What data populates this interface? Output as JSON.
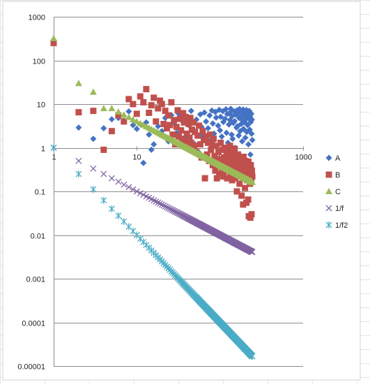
{
  "chart_data": {
    "type": "scatter",
    "title": "",
    "xlabel": "",
    "ylabel": "",
    "x_scale": "log",
    "y_scale": "log",
    "xlim": [
      1,
      1000
    ],
    "ylim": [
      1e-05,
      1000
    ],
    "x_ticks": [
      "1",
      "10",
      "100",
      "1000"
    ],
    "y_ticks": [
      "0.00001",
      "0.0001",
      "0.001",
      "0.01",
      "0.1",
      "1",
      "10",
      "100",
      "1000"
    ],
    "grid": true,
    "legend_position": "right",
    "background_sheet_gridlines": true,
    "series": [
      {
        "name": "A",
        "color": "#4472c4",
        "marker": "diamond",
        "points": [
          [
            2,
            2.9
          ],
          [
            3,
            1.6
          ],
          [
            4,
            2.8
          ],
          [
            5,
            4.5
          ],
          [
            6,
            4.8
          ],
          [
            7,
            4.2
          ],
          [
            8,
            6.8
          ],
          [
            9,
            3.3
          ],
          [
            10,
            2.7
          ],
          [
            11,
            3.5
          ],
          [
            12,
            0.45
          ],
          [
            13,
            3.8
          ],
          [
            14,
            2.0
          ],
          [
            15,
            0.9
          ],
          [
            16,
            1.2
          ],
          [
            18,
            3.1
          ],
          [
            20,
            2.4
          ],
          [
            22,
            4.8
          ],
          [
            24,
            1.4
          ],
          [
            26,
            5.6
          ],
          [
            28,
            3.7
          ],
          [
            30,
            2.2
          ],
          [
            32,
            6.0
          ],
          [
            35,
            4.1
          ],
          [
            38,
            1.7
          ],
          [
            40,
            5.2
          ],
          [
            42,
            3.3
          ],
          [
            45,
            7.0
          ],
          [
            48,
            2.6
          ],
          [
            50,
            1.2
          ],
          [
            52,
            4.4
          ],
          [
            55,
            0.8
          ],
          [
            58,
            5.8
          ],
          [
            60,
            3.0
          ],
          [
            62,
            1.9
          ],
          [
            65,
            6.4
          ],
          [
            68,
            4.0
          ],
          [
            70,
            0.7
          ],
          [
            72,
            2.8
          ],
          [
            75,
            5.5
          ],
          [
            78,
            1.5
          ],
          [
            80,
            7.1
          ],
          [
            82,
            3.6
          ],
          [
            85,
            2.1
          ],
          [
            88,
            6.6
          ],
          [
            90,
            4.9
          ],
          [
            92,
            1.1
          ],
          [
            95,
            3.2
          ],
          [
            98,
            7.4
          ],
          [
            100,
            2.5
          ],
          [
            102,
            5.1
          ],
          [
            105,
            1.8
          ],
          [
            108,
            6.9
          ],
          [
            110,
            3.9
          ],
          [
            112,
            0.9
          ],
          [
            115,
            4.6
          ],
          [
            118,
            7.6
          ],
          [
            120,
            2.2
          ],
          [
            122,
            5.9
          ],
          [
            125,
            1.3
          ],
          [
            128,
            3.4
          ],
          [
            130,
            6.2
          ],
          [
            132,
            4.3
          ],
          [
            135,
            7.8
          ],
          [
            138,
            2.0
          ],
          [
            140,
            5.3
          ],
          [
            142,
            1.6
          ],
          [
            145,
            3.7
          ],
          [
            148,
            6.8
          ],
          [
            150,
            4.1
          ],
          [
            152,
            1.0
          ],
          [
            155,
            5.7
          ],
          [
            158,
            2.9
          ],
          [
            160,
            7.2
          ],
          [
            162,
            3.1
          ],
          [
            165,
            6.1
          ],
          [
            168,
            1.9
          ],
          [
            170,
            4.8
          ],
          [
            172,
            7.7
          ],
          [
            175,
            2.4
          ],
          [
            178,
            5.0
          ],
          [
            180,
            3.5
          ],
          [
            182,
            6.5
          ],
          [
            185,
            1.4
          ],
          [
            188,
            4.2
          ],
          [
            190,
            7.5
          ],
          [
            192,
            2.7
          ],
          [
            195,
            5.6
          ],
          [
            198,
            3.8
          ],
          [
            200,
            6.7
          ],
          [
            202,
            1.7
          ],
          [
            205,
            4.5
          ],
          [
            208,
            7.3
          ],
          [
            210,
            2.3
          ],
          [
            212,
            5.4
          ],
          [
            215,
            3.3
          ],
          [
            218,
            6.3
          ],
          [
            220,
            1.2
          ],
          [
            222,
            4.7
          ],
          [
            225,
            7.0
          ],
          [
            228,
            2.6
          ],
          [
            230,
            5.2
          ],
          [
            232,
            0.7
          ],
          [
            235,
            3.9
          ],
          [
            238,
            6.0
          ],
          [
            240,
            2.1
          ],
          [
            242,
            4.4
          ],
          [
            245,
            1.5
          ]
        ]
      },
      {
        "name": "B",
        "color": "#c0504d",
        "marker": "square",
        "points": [
          [
            1,
            250
          ],
          [
            2,
            6.5
          ],
          [
            3,
            7.0
          ],
          [
            4,
            0.9
          ],
          [
            5,
            2.4
          ],
          [
            6,
            5.5
          ],
          [
            7,
            4.0
          ],
          [
            8,
            13
          ],
          [
            9,
            10
          ],
          [
            10,
            6.0
          ],
          [
            11,
            15
          ],
          [
            12,
            11
          ],
          [
            13,
            22
          ],
          [
            14,
            6.3
          ],
          [
            15,
            9.4
          ],
          [
            16,
            14
          ],
          [
            17,
            4.0
          ],
          [
            18,
            8.0
          ],
          [
            19,
            12
          ],
          [
            20,
            10
          ],
          [
            21,
            3.5
          ],
          [
            22,
            7.0
          ],
          [
            23,
            2.8
          ],
          [
            24,
            5.5
          ],
          [
            25,
            3.3
          ],
          [
            26,
            11
          ],
          [
            27,
            2.0
          ],
          [
            28,
            4.3
          ],
          [
            29,
            1.2
          ],
          [
            30,
            3.0
          ],
          [
            31,
            7.2
          ],
          [
            32,
            1.8
          ],
          [
            33,
            4.6
          ],
          [
            34,
            2.5
          ],
          [
            35,
            1.6
          ],
          [
            36,
            6.2
          ],
          [
            37,
            3.8
          ],
          [
            38,
            1.4
          ],
          [
            39,
            5.0
          ],
          [
            40,
            2.1
          ],
          [
            41,
            1.0
          ],
          [
            42,
            3.5
          ],
          [
            43,
            1.7
          ],
          [
            44,
            4.8
          ],
          [
            45,
            1.3
          ],
          [
            46,
            2.6
          ],
          [
            47,
            0.9
          ],
          [
            48,
            3.8
          ],
          [
            49,
            1.1
          ],
          [
            50,
            2.3
          ],
          [
            52,
            0.8
          ],
          [
            54,
            1.9
          ],
          [
            56,
            3.2
          ],
          [
            58,
            1.2
          ],
          [
            60,
            0.6
          ],
          [
            62,
            2.4
          ],
          [
            64,
            1.5
          ],
          [
            66,
            0.2
          ],
          [
            68,
            1.8
          ],
          [
            70,
            0.7
          ],
          [
            72,
            1.3
          ],
          [
            74,
            0.5
          ],
          [
            76,
            2.0
          ],
          [
            78,
            0.9
          ],
          [
            80,
            1.2
          ],
          [
            82,
            0.4
          ],
          [
            84,
            1.6
          ],
          [
            86,
            0.65
          ],
          [
            88,
            0.3
          ],
          [
            90,
            1.1
          ],
          [
            92,
            0.2
          ],
          [
            94,
            0.55
          ],
          [
            96,
            0.8
          ],
          [
            98,
            0.25
          ],
          [
            100,
            0.5
          ],
          [
            102,
            1.3
          ],
          [
            104,
            0.4
          ],
          [
            106,
            0.35
          ],
          [
            108,
            0.9
          ],
          [
            110,
            0.22
          ],
          [
            112,
            0.6
          ],
          [
            114,
            1.0
          ],
          [
            116,
            0.3
          ],
          [
            118,
            0.45
          ],
          [
            120,
            0.75
          ],
          [
            122,
            0.2
          ],
          [
            124,
            0.55
          ],
          [
            126,
            0.85
          ],
          [
            128,
            0.3
          ],
          [
            130,
            0.4
          ],
          [
            132,
            1.1
          ],
          [
            134,
            0.25
          ],
          [
            136,
            0.65
          ],
          [
            138,
            0.5
          ],
          [
            140,
            0.18
          ],
          [
            142,
            0.35
          ],
          [
            144,
            0.75
          ],
          [
            146,
            0.28
          ],
          [
            148,
            0.45
          ],
          [
            150,
            0.95
          ],
          [
            152,
            0.2
          ],
          [
            155,
            0.6
          ],
          [
            158,
            0.32
          ],
          [
            160,
            0.1
          ],
          [
            162,
            0.42
          ],
          [
            165,
            0.7
          ],
          [
            168,
            0.22
          ],
          [
            170,
            0.5
          ],
          [
            172,
            0.15
          ],
          [
            175,
            0.36
          ],
          [
            178,
            0.55
          ],
          [
            180,
            0.25
          ],
          [
            182,
            0.08
          ],
          [
            185,
            0.44
          ],
          [
            188,
            0.3
          ],
          [
            190,
            0.05
          ],
          [
            192,
            0.62
          ],
          [
            195,
            0.2
          ],
          [
            198,
            0.38
          ],
          [
            200,
            0.12
          ],
          [
            202,
            0.5
          ],
          [
            205,
            0.28
          ],
          [
            208,
            0.055
          ],
          [
            210,
            0.42
          ],
          [
            212,
            0.18
          ],
          [
            215,
            0.33
          ],
          [
            218,
            0.065
          ],
          [
            220,
            0.48
          ],
          [
            222,
            0.027
          ],
          [
            225,
            0.24
          ],
          [
            228,
            0.36
          ],
          [
            230,
            0.15
          ],
          [
            232,
            0.025
          ],
          [
            235,
            0.4
          ],
          [
            238,
            0.2
          ],
          [
            240,
            0.03
          ],
          [
            242,
            0.3
          ],
          [
            245,
            0.22
          ]
        ]
      },
      {
        "name": "C",
        "color": "#9bbb59",
        "marker": "triangle",
        "points": "C = 40/x for x = 5..245, plus outliers",
        "generator": {
          "k": 40,
          "x_from": 5,
          "x_to": 245
        },
        "outliers": [
          [
            1,
            320
          ],
          [
            2,
            30
          ],
          [
            3,
            19
          ],
          [
            4,
            8.0
          ]
        ]
      },
      {
        "name": "1/f",
        "color": "#8064a2",
        "marker": "x",
        "generator": {
          "k": 1,
          "p": 1,
          "x_from": 1,
          "x_to": 245
        }
      },
      {
        "name": "1/f2",
        "color": "#4bacc6",
        "marker": "star",
        "generator": {
          "k": 1,
          "p": 2,
          "x_from": 1,
          "x_to": 245
        }
      }
    ]
  },
  "legend": {
    "items": [
      {
        "label": "A",
        "marker": "diamond",
        "color": "#4472c4"
      },
      {
        "label": "B",
        "marker": "square",
        "color": "#c0504d"
      },
      {
        "label": "C",
        "marker": "triangle",
        "color": "#9bbb59"
      },
      {
        "label": "1/f",
        "marker": "x",
        "color": "#8064a2"
      },
      {
        "label": "1/f2",
        "marker": "star",
        "color": "#4bacc6"
      }
    ]
  }
}
